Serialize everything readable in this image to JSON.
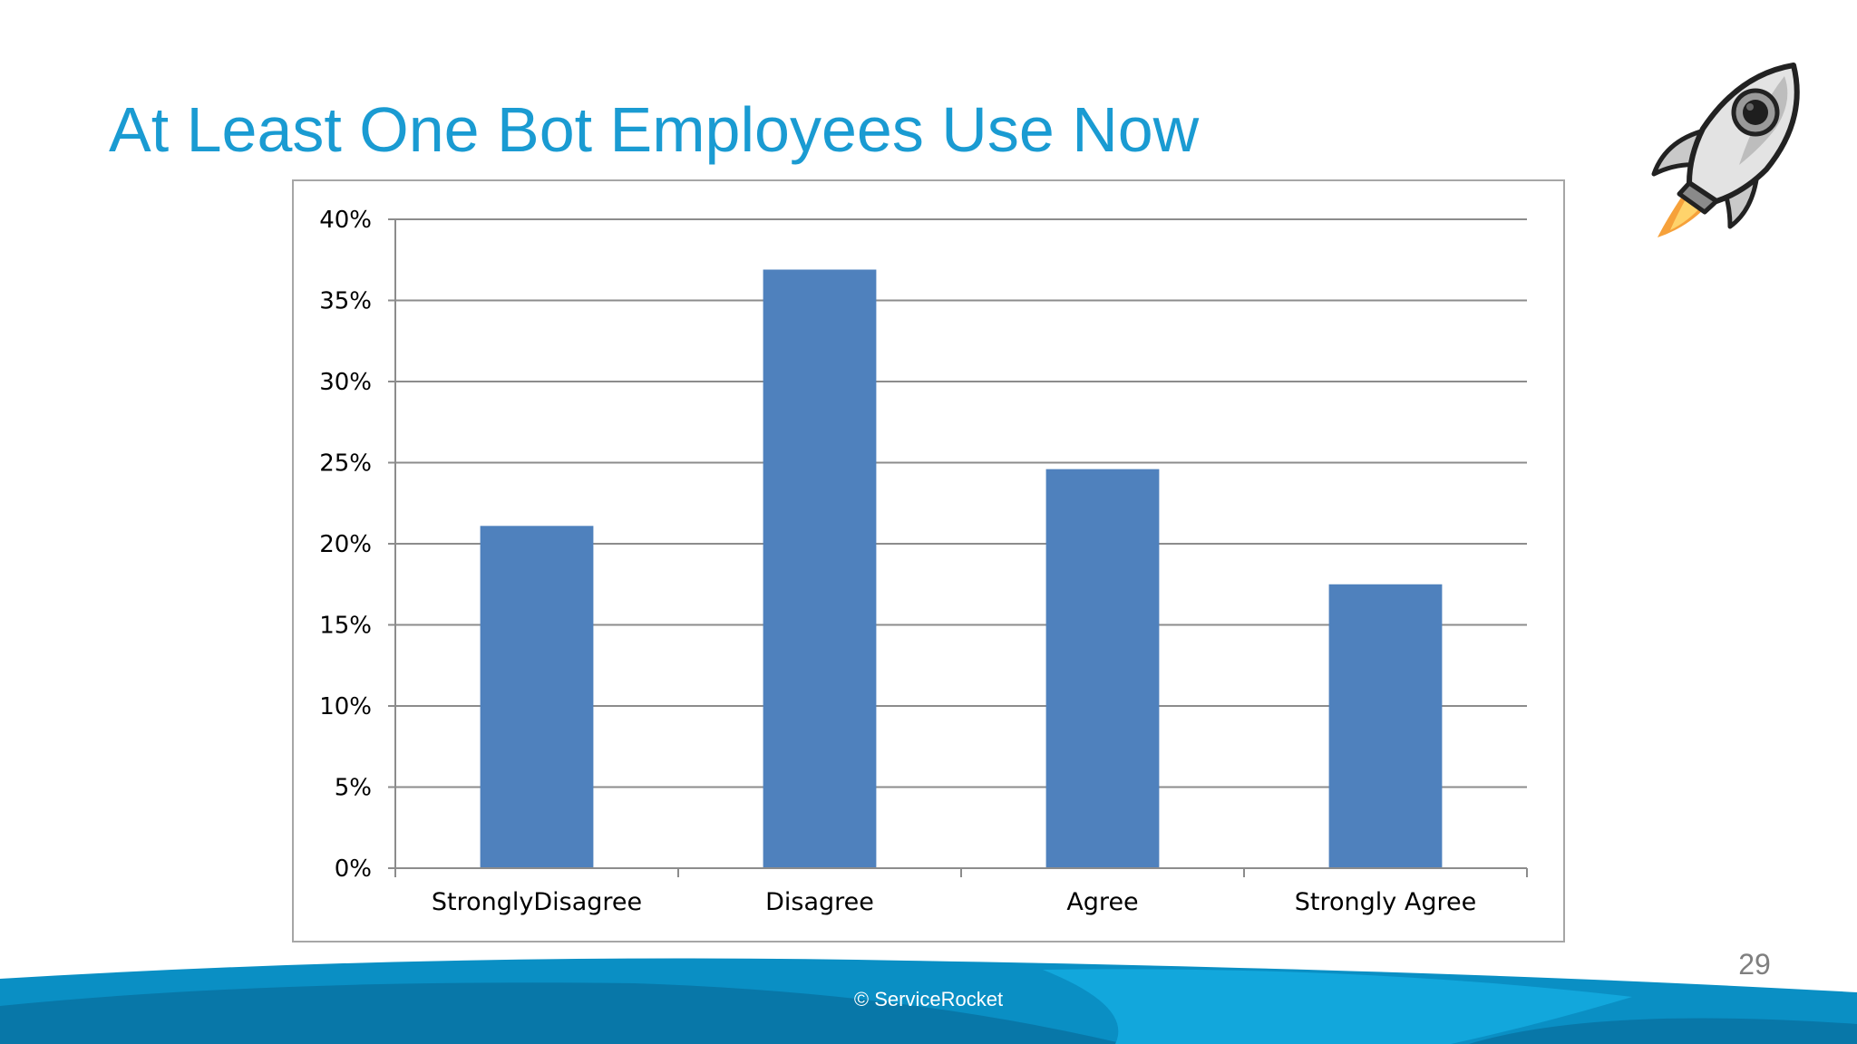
{
  "slide": {
    "title": "At Least One Bot Employees Use Now",
    "page_number": "29",
    "copyright": "© ServiceRocket"
  },
  "colors": {
    "title": "#1a9bd2",
    "bar": "#4f81bd",
    "gridline": "#8c8c8c",
    "footer_primary": "#0a8fc4",
    "footer_dark": "#0877a8",
    "footer_light": "#12a7dc"
  },
  "icons": {
    "decoration": "rocket-icon"
  },
  "chart_data": {
    "type": "bar",
    "categories": [
      "StronglyDisagree",
      "Disagree",
      "Agree",
      "Strongly Agree"
    ],
    "series": [
      {
        "values": [
          21.1,
          36.9,
          24.6,
          17.5
        ]
      }
    ],
    "ylim": [
      0,
      40
    ],
    "y_ticks": [
      0,
      5,
      10,
      15,
      20,
      25,
      30,
      35,
      40
    ],
    "y_tick_labels": [
      "0%",
      "5%",
      "10%",
      "15%",
      "20%",
      "25%",
      "30%",
      "35%",
      "40%"
    ],
    "grid": true,
    "legend": "none"
  }
}
